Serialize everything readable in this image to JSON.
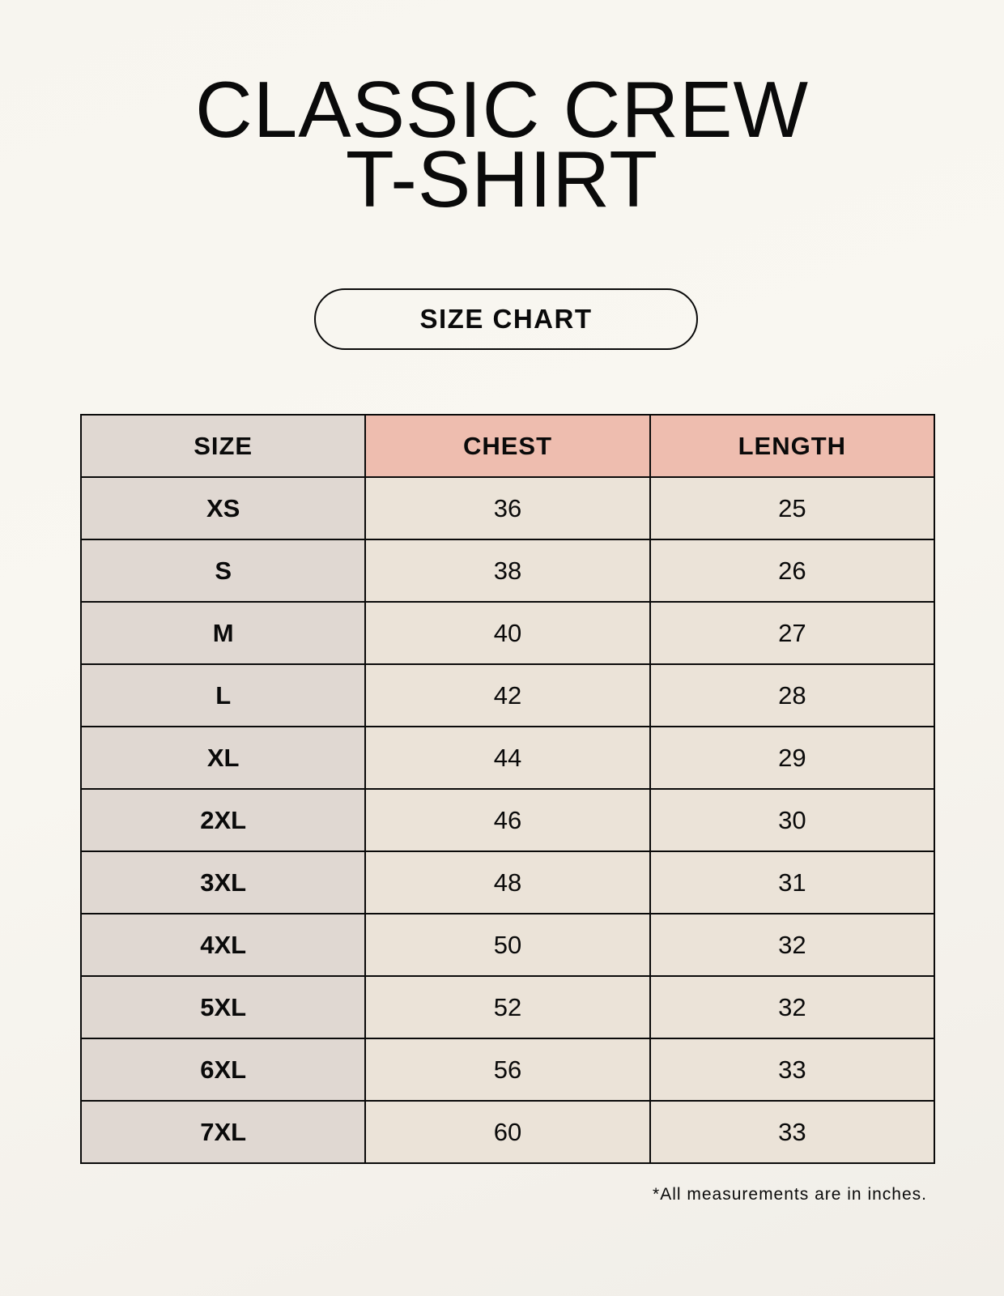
{
  "title_line1": "CLASSIC CREW",
  "title_line2": "T-SHIRT",
  "badge": "SIZE CHART",
  "table": {
    "headers": [
      "SIZE",
      "CHEST",
      "LENGTH"
    ],
    "rows": [
      [
        "XS",
        "36",
        "25"
      ],
      [
        "S",
        "38",
        "26"
      ],
      [
        "M",
        "40",
        "27"
      ],
      [
        "L",
        "42",
        "28"
      ],
      [
        "XL",
        "44",
        "29"
      ],
      [
        "2XL",
        "46",
        "30"
      ],
      [
        "3XL",
        "48",
        "31"
      ],
      [
        "4XL",
        "50",
        "32"
      ],
      [
        "5XL",
        "52",
        "32"
      ],
      [
        "6XL",
        "56",
        "33"
      ],
      [
        "7XL",
        "60",
        "33"
      ]
    ]
  },
  "note": "*All measurements are in inches.",
  "colors": {
    "size_column": "#e0d8d2",
    "measure_header": "#eebdaf",
    "measure_cells": "#ebe3d8"
  }
}
